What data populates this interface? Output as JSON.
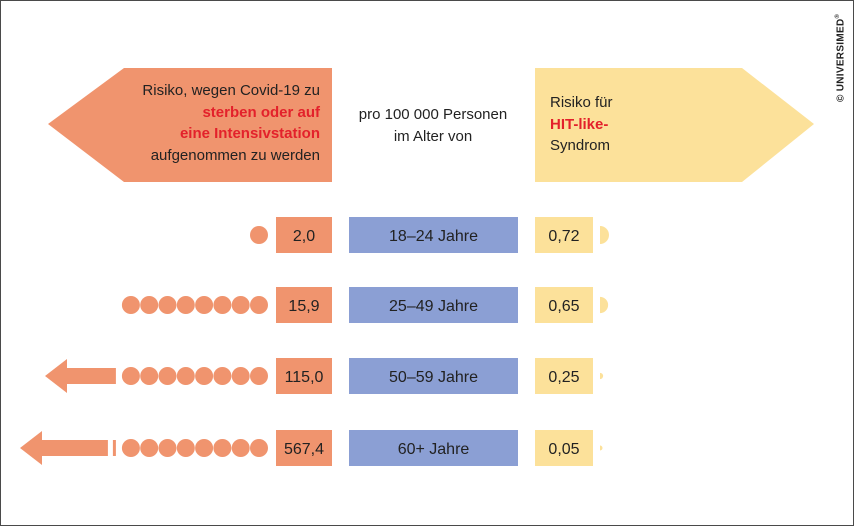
{
  "header": {
    "left_lines": [
      {
        "text": "Risiko, wegen Covid-19 zu",
        "emph": false
      },
      {
        "text": "sterben oder auf",
        "emph": true
      },
      {
        "text": "eine Intensivstation",
        "emph": true
      },
      {
        "text": "aufgenommen zu werden",
        "emph": false
      }
    ],
    "middle_lines": [
      "pro 100 000 Personen",
      "im Alter von"
    ],
    "right_lines": [
      {
        "text": "Risiko für",
        "emph": false
      },
      {
        "text": "HIT-like-",
        "emph": true
      },
      {
        "text": "Syndrom",
        "emph": false
      }
    ]
  },
  "credit": "© UNIVERSIMED",
  "credit_mark": "®",
  "colors": {
    "covid": "#f0946e",
    "age": "#8b9fd4",
    "hit": "#fce19a",
    "emphasis": "#e3212b",
    "text": "#222222"
  },
  "chart_data": {
    "type": "table",
    "rows": [
      {
        "age": "18–24 Jahre",
        "covid_label": "2,0",
        "covid_value": 2.0,
        "hit_label": "0,72",
        "hit_value": 0.72
      },
      {
        "age": "25–49 Jahre",
        "covid_label": "15,9",
        "covid_value": 15.9,
        "hit_label": "0,65",
        "hit_value": 0.65
      },
      {
        "age": "50–59 Jahre",
        "covid_label": "115,0",
        "covid_value": 115.0,
        "hit_label": "0,25",
        "hit_value": 0.25
      },
      {
        "age": "60+ Jahre",
        "covid_label": "567,4",
        "covid_value": 567.4,
        "hit_label": "0,05",
        "hit_value": 0.05
      }
    ]
  }
}
